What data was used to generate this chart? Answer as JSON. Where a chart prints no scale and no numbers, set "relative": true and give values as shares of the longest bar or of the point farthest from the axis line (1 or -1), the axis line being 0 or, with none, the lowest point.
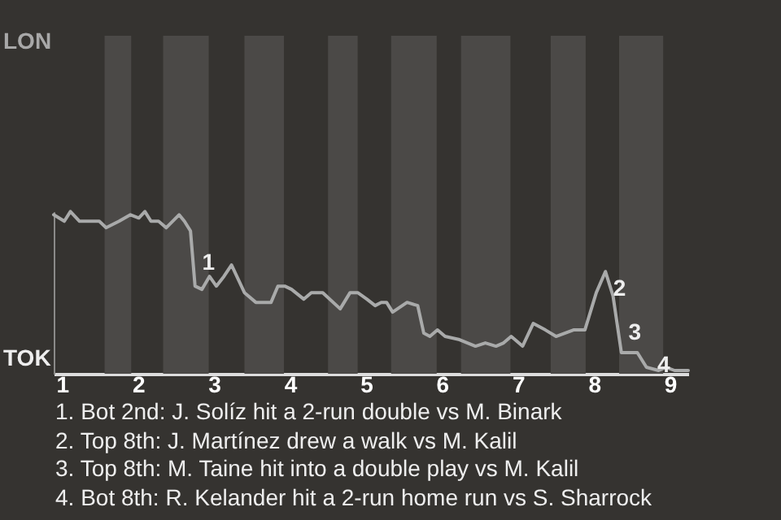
{
  "chart_data": {
    "type": "line",
    "relative": true,
    "x": [
      0.89,
      1.03,
      1.11,
      1.23,
      1.49,
      1.58,
      1.75,
      1.9,
      2.01,
      2.09,
      2.17,
      2.27,
      2.37,
      2.54,
      2.61,
      2.69,
      2.75,
      2.84,
      2.94,
      3.03,
      3.13,
      3.23,
      3.4,
      3.55,
      3.75,
      3.84,
      3.93,
      4.02,
      4.18,
      4.28,
      4.43,
      4.66,
      4.79,
      4.89,
      5.01,
      5.12,
      5.2,
      5.27,
      5.35,
      5.54,
      5.68,
      5.76,
      5.84,
      5.94,
      6.04,
      6.23,
      6.44,
      6.57,
      6.71,
      6.81,
      6.91,
      7.06,
      7.2,
      7.36,
      7.5,
      7.73,
      7.88,
      8.03,
      8.15,
      8.25,
      8.36,
      8.48,
      8.57,
      8.69,
      8.85,
      8.95,
      9.06,
      9.24
    ],
    "series": [
      {
        "color": "#a9aaaa",
        "values": [
          0.98,
          0.94,
          1,
          0.94,
          0.94,
          0.9,
          0.94,
          0.98,
          0.96,
          1,
          0.94,
          0.94,
          0.9,
          0.98,
          0.94,
          0.88,
          0.54,
          0.52,
          0.6,
          0.54,
          0.6,
          0.67,
          0.5,
          0.44,
          0.44,
          0.54,
          0.54,
          0.52,
          0.46,
          0.5,
          0.5,
          0.4,
          0.5,
          0.5,
          0.46,
          0.42,
          0.44,
          0.44,
          0.38,
          0.44,
          0.42,
          0.25,
          0.23,
          0.27,
          0.23,
          0.21,
          0.17,
          0.19,
          0.17,
          0.19,
          0.23,
          0.17,
          0.31,
          0.27,
          0.23,
          0.27,
          0.27,
          0.5,
          0.63,
          0.48,
          0.13,
          0.13,
          0.13,
          0.04,
          0.02,
          0.04,
          0.02,
          0.02
        ]
      }
    ],
    "xlim": [
      0.89,
      9.24
    ],
    "xticks": [
      1,
      2,
      3,
      4,
      5,
      6,
      7,
      8,
      9
    ],
    "bands": [
      {
        "axis": "x",
        "from": 1.56,
        "to": 1.91,
        "color": "#4b4947"
      },
      {
        "axis": "x",
        "from": 2.33,
        "to": 2.93,
        "color": "#4b4947"
      },
      {
        "axis": "x",
        "from": 3.4,
        "to": 3.92,
        "color": "#4b4947"
      },
      {
        "axis": "x",
        "from": 4.5,
        "to": 4.89,
        "color": "#4b4947"
      },
      {
        "axis": "x",
        "from": 5.33,
        "to": 5.93,
        "color": "#4b4947"
      },
      {
        "axis": "x",
        "from": 6.25,
        "to": 6.9,
        "color": "#4b4947"
      },
      {
        "axis": "x",
        "from": 7.43,
        "to": 7.89,
        "color": "#4b4947"
      },
      {
        "axis": "x",
        "from": 8.33,
        "to": 8.91,
        "color": "#4b4947"
      }
    ],
    "annotations": [
      "LON",
      "TOK",
      {
        "text": "1",
        "x": 2.8,
        "y": 0.65
      },
      {
        "text": "2",
        "x": 8.21,
        "y": 0.49
      },
      {
        "text": "3",
        "x": 8.41,
        "y": 0.22
      },
      {
        "text": "4",
        "x": 8.79,
        "y": 0.02
      },
      "1. Bot 2nd: J. Solíz hit a 2-run double vs M. Binark",
      "2. Top 8th: J. Martínez drew a walk vs M. Kalil",
      "3. Top 8th: M. Taine hit into a double play vs M. Kalil",
      "4. Bot 8th: R. Kelander hit a 2-run home run vs S. Sharrock"
    ]
  }
}
